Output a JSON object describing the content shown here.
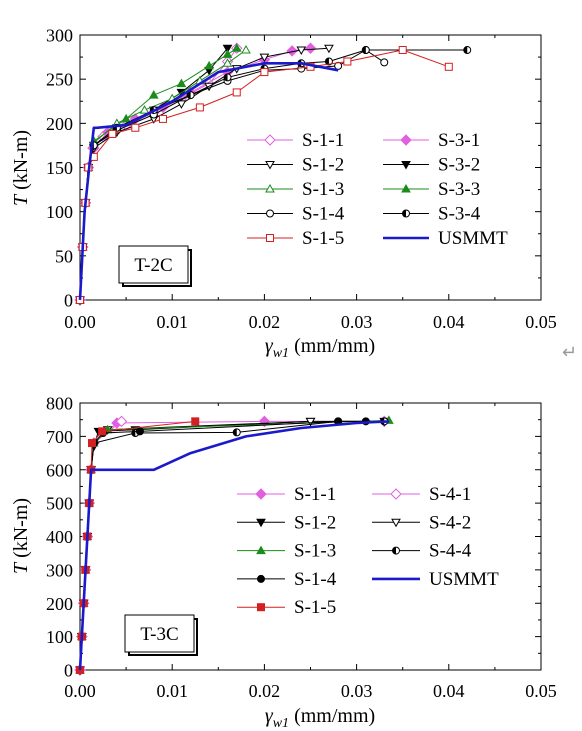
{
  "stray_mark": "↵",
  "charts_meta": [
    {
      "panel_label": "T-2C",
      "ylabel_main": "T",
      "ylabel_unit": " (kN-m)",
      "xlabel_main": "γ",
      "xlabel_sub": "w1",
      "xlabel_unit": " (mm/mm)",
      "xticks_text": [
        "0.00",
        "0.01",
        "0.02",
        "0.03",
        "0.04",
        "0.05"
      ],
      "yticks_text": [
        "0",
        "50",
        "100",
        "150",
        "200",
        "250",
        "300"
      ]
    },
    {
      "panel_label": "T-3C",
      "ylabel_main": "T",
      "ylabel_unit": " (kN-m)",
      "xlabel_main": "γ",
      "xlabel_sub": "w1",
      "xlabel_unit": " (mm/mm)",
      "xticks_text": [
        "0.00",
        "0.01",
        "0.02",
        "0.03",
        "0.04",
        "0.05"
      ],
      "yticks_text": [
        "0",
        "100",
        "200",
        "300",
        "400",
        "500",
        "600",
        "700",
        "800"
      ]
    }
  ],
  "chart_data": [
    {
      "type": "line",
      "panel_label": "T-2C",
      "xlabel": "γw1 (mm/mm)",
      "ylabel": "T (kN-m)",
      "xlim": [
        0,
        0.05
      ],
      "ylim": [
        0,
        300
      ],
      "xticks": [
        0,
        0.01,
        0.02,
        0.03,
        0.04,
        0.05
      ],
      "yticks": [
        0,
        50,
        100,
        150,
        200,
        250,
        300
      ],
      "legend_position": "lower-right",
      "series": [
        {
          "name": "S-1-1",
          "marker": "diamond-open",
          "color": "#e060e0",
          "x": [
            0,
            0.0003,
            0.0006,
            0.0009,
            0.0014,
            0.0025,
            0.005,
            0.008,
            0.011,
            0.014,
            0.016,
            0.017
          ],
          "y": [
            0,
            60,
            110,
            150,
            172,
            185,
            198,
            212,
            228,
            245,
            270,
            285
          ]
        },
        {
          "name": "S-3-1",
          "marker": "diamond-filled",
          "color": "#e060e0",
          "x": [
            0,
            0.0003,
            0.0006,
            0.0009,
            0.0015,
            0.003,
            0.006,
            0.009,
            0.012,
            0.016,
            0.02,
            0.023,
            0.025
          ],
          "y": [
            0,
            60,
            110,
            150,
            172,
            190,
            205,
            218,
            235,
            258,
            272,
            282,
            285
          ]
        },
        {
          "name": "S-1-2",
          "marker": "triangle-down-open",
          "color": "#000000",
          "x": [
            0,
            0.0003,
            0.0006,
            0.0009,
            0.0015,
            0.004,
            0.008,
            0.011,
            0.014,
            0.017,
            0.02,
            0.024,
            0.027
          ],
          "y": [
            0,
            60,
            110,
            150,
            172,
            190,
            205,
            222,
            242,
            262,
            275,
            283,
            285
          ]
        },
        {
          "name": "S-3-2",
          "marker": "triangle-down-filled",
          "color": "#000000",
          "x": [
            0,
            0.0003,
            0.0006,
            0.0009,
            0.0015,
            0.004,
            0.008,
            0.011,
            0.014,
            0.016
          ],
          "y": [
            0,
            60,
            110,
            150,
            175,
            195,
            215,
            235,
            260,
            285
          ]
        },
        {
          "name": "S-1-3",
          "marker": "triangle-up-open",
          "color": "#1a8c1a",
          "x": [
            0,
            0.0003,
            0.0006,
            0.0009,
            0.0015,
            0.004,
            0.007,
            0.01,
            0.013,
            0.016,
            0.018
          ],
          "y": [
            0,
            60,
            110,
            150,
            178,
            200,
            215,
            228,
            248,
            268,
            283
          ]
        },
        {
          "name": "S-3-3",
          "marker": "triangle-up-filled",
          "color": "#1a8c1a",
          "x": [
            0,
            0.0003,
            0.0006,
            0.0009,
            0.0015,
            0.005,
            0.008,
            0.011,
            0.014,
            0.016,
            0.017
          ],
          "y": [
            0,
            60,
            110,
            150,
            180,
            205,
            232,
            245,
            265,
            278,
            285
          ]
        },
        {
          "name": "S-1-4",
          "marker": "circle-open",
          "color": "#000000",
          "x": [
            0,
            0.0003,
            0.0006,
            0.0009,
            0.0015,
            0.004,
            0.008,
            0.012,
            0.016,
            0.02,
            0.024,
            0.028,
            0.031,
            0.033
          ],
          "y": [
            0,
            60,
            110,
            150,
            175,
            192,
            210,
            232,
            248,
            260,
            262,
            265,
            283,
            269
          ]
        },
        {
          "name": "S-3-4",
          "marker": "circle-half",
          "color": "#000000",
          "x": [
            0,
            0.0003,
            0.0006,
            0.0009,
            0.0015,
            0.004,
            0.008,
            0.012,
            0.016,
            0.02,
            0.024,
            0.027,
            0.031,
            0.042
          ],
          "y": [
            0,
            60,
            110,
            150,
            175,
            195,
            215,
            232,
            252,
            262,
            268,
            270,
            283,
            283
          ]
        },
        {
          "name": "S-1-5",
          "marker": "square-open",
          "color": "#d42020",
          "x": [
            0,
            0.0003,
            0.0006,
            0.0009,
            0.0015,
            0.0035,
            0.006,
            0.009,
            0.013,
            0.017,
            0.02,
            0.025,
            0.029,
            0.035,
            0.04
          ],
          "y": [
            0,
            60,
            110,
            150,
            162,
            188,
            195,
            205,
            218,
            235,
            258,
            264,
            270,
            283,
            264
          ]
        },
        {
          "name": "USMMT",
          "marker": "none",
          "color": "#1a1acc",
          "x": [
            0,
            0.0005,
            0.001,
            0.0015,
            0.0018,
            0.005,
            0.01,
            0.015,
            0.02,
            0.024,
            0.028
          ],
          "y": [
            0,
            100,
            150,
            195,
            195,
            198,
            225,
            258,
            268,
            268,
            260
          ]
        }
      ]
    },
    {
      "type": "line",
      "panel_label": "T-3C",
      "xlabel": "γw1 (mm/mm)",
      "ylabel": "T (kN-m)",
      "xlim": [
        0,
        0.05
      ],
      "ylim": [
        0,
        800
      ],
      "xticks": [
        0,
        0.01,
        0.02,
        0.03,
        0.04,
        0.05
      ],
      "yticks": [
        0,
        100,
        200,
        300,
        400,
        500,
        600,
        700,
        800
      ],
      "legend_position": "lower-right",
      "series": [
        {
          "name": "S-1-1",
          "marker": "diamond-filled",
          "color": "#e060e0",
          "x": [
            0,
            0.0002,
            0.0004,
            0.0006,
            0.0008,
            0.001,
            0.0012,
            0.0015,
            0.004,
            0.02,
            0.033
          ],
          "y": [
            0,
            100,
            200,
            300,
            400,
            500,
            600,
            680,
            740,
            745,
            745
          ]
        },
        {
          "name": "S-4-1",
          "marker": "diamond-open",
          "color": "#e060e0",
          "x": [
            0,
            0.0002,
            0.0004,
            0.0006,
            0.0008,
            0.001,
            0.0012,
            0.0015,
            0.0045
          ],
          "y": [
            0,
            100,
            200,
            300,
            400,
            500,
            600,
            680,
            745
          ]
        },
        {
          "name": "S-1-2",
          "marker": "triangle-down-filled",
          "color": "#000000",
          "x": [
            0,
            0.0002,
            0.0004,
            0.0006,
            0.0008,
            0.001,
            0.0012,
            0.0015,
            0.002,
            0.006,
            0.025,
            0.033
          ],
          "y": [
            0,
            100,
            200,
            300,
            400,
            500,
            600,
            670,
            715,
            720,
            745,
            745
          ]
        },
        {
          "name": "S-4-2",
          "marker": "triangle-down-open",
          "color": "#000000",
          "x": [
            0,
            0.0002,
            0.0004,
            0.0006,
            0.0008,
            0.001,
            0.0012,
            0.0015,
            0.003,
            0.025
          ],
          "y": [
            0,
            100,
            200,
            300,
            400,
            500,
            600,
            680,
            720,
            745
          ]
        },
        {
          "name": "S-1-3",
          "marker": "triangle-up-filled",
          "color": "#1a8c1a",
          "x": [
            0,
            0.0002,
            0.0004,
            0.0006,
            0.0008,
            0.001,
            0.0012,
            0.0015,
            0.003,
            0.0335
          ],
          "y": [
            0,
            100,
            200,
            300,
            400,
            500,
            600,
            680,
            720,
            748
          ]
        },
        {
          "name": "S-4-4",
          "marker": "circle-half",
          "color": "#000000",
          "x": [
            0,
            0.0002,
            0.0004,
            0.0006,
            0.0008,
            0.001,
            0.0012,
            0.0015,
            0.006,
            0.017,
            0.028,
            0.033
          ],
          "y": [
            0,
            100,
            200,
            300,
            400,
            500,
            600,
            680,
            710,
            712,
            745,
            745
          ]
        },
        {
          "name": "S-1-4",
          "marker": "circle-filled",
          "color": "#000000",
          "x": [
            0,
            0.0002,
            0.0004,
            0.0006,
            0.0008,
            0.001,
            0.0012,
            0.0015,
            0.0025,
            0.0065,
            0.028,
            0.031
          ],
          "y": [
            0,
            100,
            200,
            300,
            400,
            500,
            600,
            680,
            710,
            715,
            745,
            745
          ]
        },
        {
          "name": "S-1-5",
          "marker": "square-filled",
          "color": "#d42020",
          "x": [
            0,
            0.0002,
            0.0004,
            0.0006,
            0.0008,
            0.001,
            0.0012,
            0.0013,
            0.0024,
            0.0125
          ],
          "y": [
            0,
            100,
            200,
            300,
            400,
            500,
            600,
            680,
            715,
            745
          ]
        },
        {
          "name": "USMMT",
          "marker": "none",
          "color": "#1a1acc",
          "x": [
            0,
            0.0004,
            0.0008,
            0.0012,
            0.0018,
            0.008,
            0.012,
            0.018,
            0.024,
            0.03,
            0.0335
          ],
          "y": [
            0,
            200,
            400,
            600,
            600,
            600,
            650,
            700,
            725,
            740,
            745
          ]
        }
      ]
    }
  ]
}
